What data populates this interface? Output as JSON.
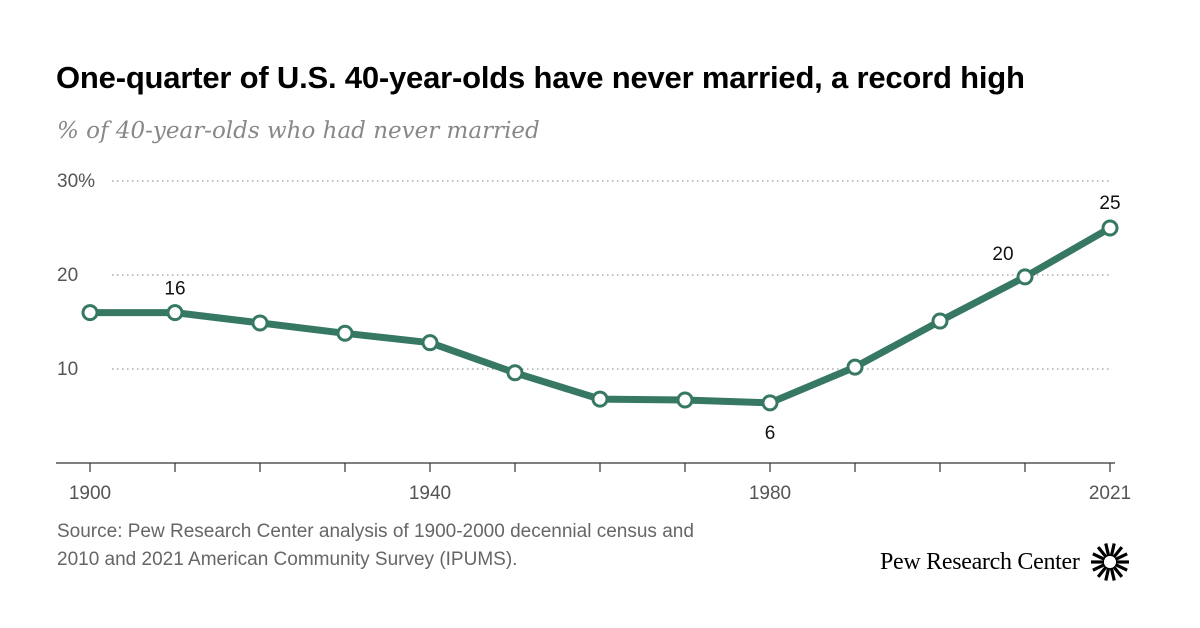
{
  "title": "One-quarter of U.S. 40-year-olds have never married, a record high",
  "subtitle": "% of 40-year-olds who had never married",
  "source": "Source: Pew Research Center analysis of 1900-2000 decennial census and 2010 and 2021 American Community Survey (IPUMS).",
  "brand": "Pew Research Center",
  "colors": {
    "line": "#367864",
    "grid": "#999999",
    "axis": "#333333",
    "text": "#555555"
  },
  "chart_data": {
    "type": "line",
    "title": "One-quarter of U.S. 40-year-olds have never married, a record high",
    "subtitle": "% of 40-year-olds who had never married",
    "x": [
      1900,
      1910,
      1920,
      1930,
      1940,
      1950,
      1960,
      1970,
      1980,
      1990,
      2000,
      2010,
      2021
    ],
    "x_positions": [
      1900,
      1910,
      1920,
      1930,
      1940,
      1950,
      1960,
      1970,
      1980,
      1990,
      2000,
      2010,
      2020
    ],
    "series": [
      {
        "values": [
          16,
          16,
          14.9,
          13.8,
          12.8,
          9.6,
          6.8,
          6.7,
          6.4,
          10.2,
          15.1,
          19.8,
          25
        ]
      }
    ],
    "x_tick_labels": [
      "1900",
      "1940",
      "1980",
      "2021"
    ],
    "x_tick_label_positions": [
      1900,
      1940,
      1980,
      2020
    ],
    "y_ticks": [
      10,
      20,
      30
    ],
    "y_tick_labels": [
      "10",
      "20",
      "30%"
    ],
    "ylim": [
      0,
      30
    ],
    "grid": "horizontal dotted",
    "data_labels": [
      {
        "index": 1,
        "text": "16"
      },
      {
        "index": 8,
        "text": "6"
      },
      {
        "index": 11,
        "text": "20"
      },
      {
        "index": 12,
        "text": "25"
      }
    ]
  }
}
